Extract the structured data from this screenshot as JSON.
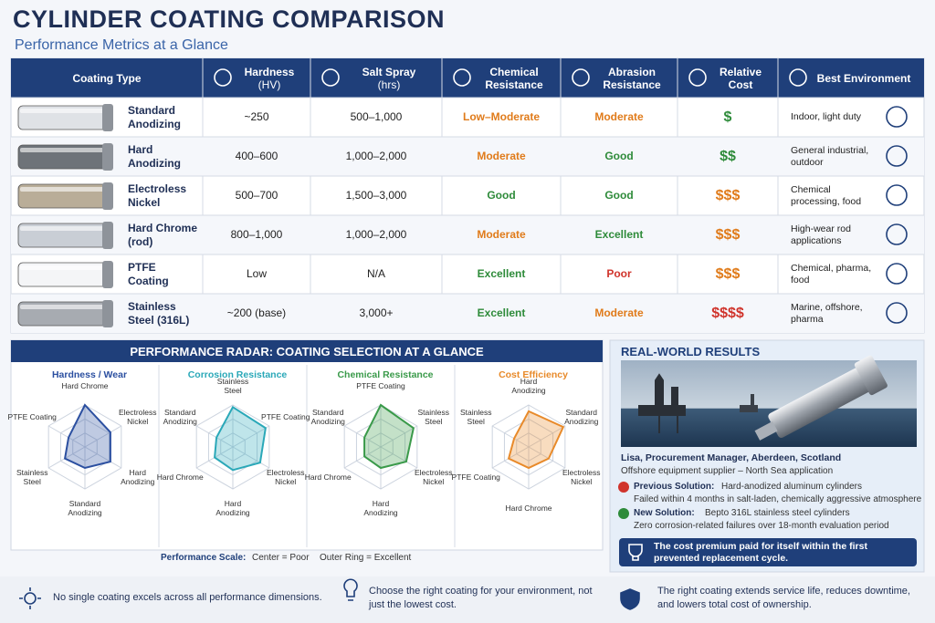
{
  "header": {
    "title": "CYLINDER COATING COMPARISON",
    "subtitle": "Performance Metrics at a Glance"
  },
  "table": {
    "columns": [
      {
        "label": "Coating Type"
      },
      {
        "label": "Hardness",
        "unit": "(HV)"
      },
      {
        "label": "Salt Spray",
        "unit": "(hrs)"
      },
      {
        "label": "Chemical Resistance"
      },
      {
        "label": "Abrasion Resistance"
      },
      {
        "label": "Relative Cost"
      },
      {
        "label": "Best Environment"
      }
    ],
    "rows": [
      [
        "Standard Anodizing",
        "~250",
        "500–1,000",
        "Low–Moderate",
        "Moderate",
        "$",
        "Indoor, light duty"
      ],
      [
        "Hard Anodizing",
        "400–600",
        "1,000–2,000",
        "Moderate",
        "Good",
        "$$",
        "General industrial, outdoor"
      ],
      [
        "Electroless Nickel",
        "500–700",
        "1,500–3,000",
        "Good",
        "Good",
        "$$$",
        "Chemical processing, food"
      ],
      [
        "Hard Chrome (rod)",
        "800–1,000",
        "1,000–2,000",
        "Moderate",
        "Excellent",
        "$$$",
        "High-wear rod applications"
      ],
      [
        "PTFE Coating",
        "Low",
        "N/A",
        "Excellent",
        "Poor",
        "$$$",
        "Chemical, pharma, food"
      ],
      [
        "Stainless Steel (316L)",
        "~200 (base)",
        "3,000+",
        "Excellent",
        "Moderate",
        "$$$$",
        "Marine, offshore, pharma"
      ]
    ]
  },
  "radar": {
    "title": "PERFORMANCE RADAR: COATING SELECTION AT A GLANCE",
    "charts": [
      {
        "type": "radar",
        "title": "Hardness / Wear",
        "color": "#2b4fa0",
        "axes": [
          "Hard Chrome",
          "Electroless Nickel",
          "Hard Anodizing",
          "Standard Anodizing",
          "Stainless Steel",
          "PTFE Coating"
        ],
        "values": [
          1.0,
          0.7,
          0.7,
          0.5,
          0.55,
          0.45
        ]
      },
      {
        "type": "radar",
        "title": "Corrosion Resistance",
        "color": "#2aa8b8",
        "axes": [
          "Stainless Steel",
          "PTFE Coating",
          "Electroless Nickel",
          "Hard Anodizing",
          "Hard Chrome",
          "Standard Anodizing"
        ],
        "values": [
          0.95,
          0.9,
          0.75,
          0.55,
          0.5,
          0.45
        ]
      },
      {
        "type": "radar",
        "title": "Chemical Resistance",
        "color": "#3a9a4a",
        "axes": [
          "PTFE Coating",
          "Stainless Steel",
          "Electroless Nickel",
          "Hard Anodizing",
          "Hard Chrome",
          "Standard Anodizing"
        ],
        "values": [
          1.0,
          0.9,
          0.7,
          0.5,
          0.45,
          0.45
        ]
      },
      {
        "type": "radar",
        "title": "Cost Efficiency",
        "color": "#e88a2a",
        "axes": [
          "Hard Anodizing",
          "Standard Anodizing",
          "Electroless Nickel",
          "Hard Chrome",
          "PTFE Coating",
          "Stainless Steel"
        ],
        "values": [
          0.85,
          0.95,
          0.55,
          0.5,
          0.55,
          0.4
        ]
      }
    ],
    "scale": {
      "label": "Performance Scale:",
      "center": "Center = Poor",
      "outer": "Outer Ring = Excellent"
    }
  },
  "results": {
    "title": "REAL-WORLD RESULTS",
    "person": "Lisa, Procurement Manager, Aberdeen, Scotland",
    "role": "Offshore equipment supplier – North Sea application",
    "previous": {
      "label": "Previous Solution:",
      "text": "Hard-anodized aluminum cylinders",
      "detail": "Failed within 4 months in salt-laden, chemically aggressive atmosphere"
    },
    "new": {
      "label": "New Solution:",
      "text": "Bepto 316L stainless steel cylinders",
      "detail": "Zero corrosion-related failures over 18-month evaluation period"
    },
    "banner": "The cost premium paid for itself within the first prevented replacement cycle."
  },
  "footer": [
    "No single coating excels across all performance dimensions.",
    "Choose the right coating for your environment, not just the lowest cost.",
    "The right coating extends service life, reduces downtime, and lowers total cost of ownership."
  ]
}
